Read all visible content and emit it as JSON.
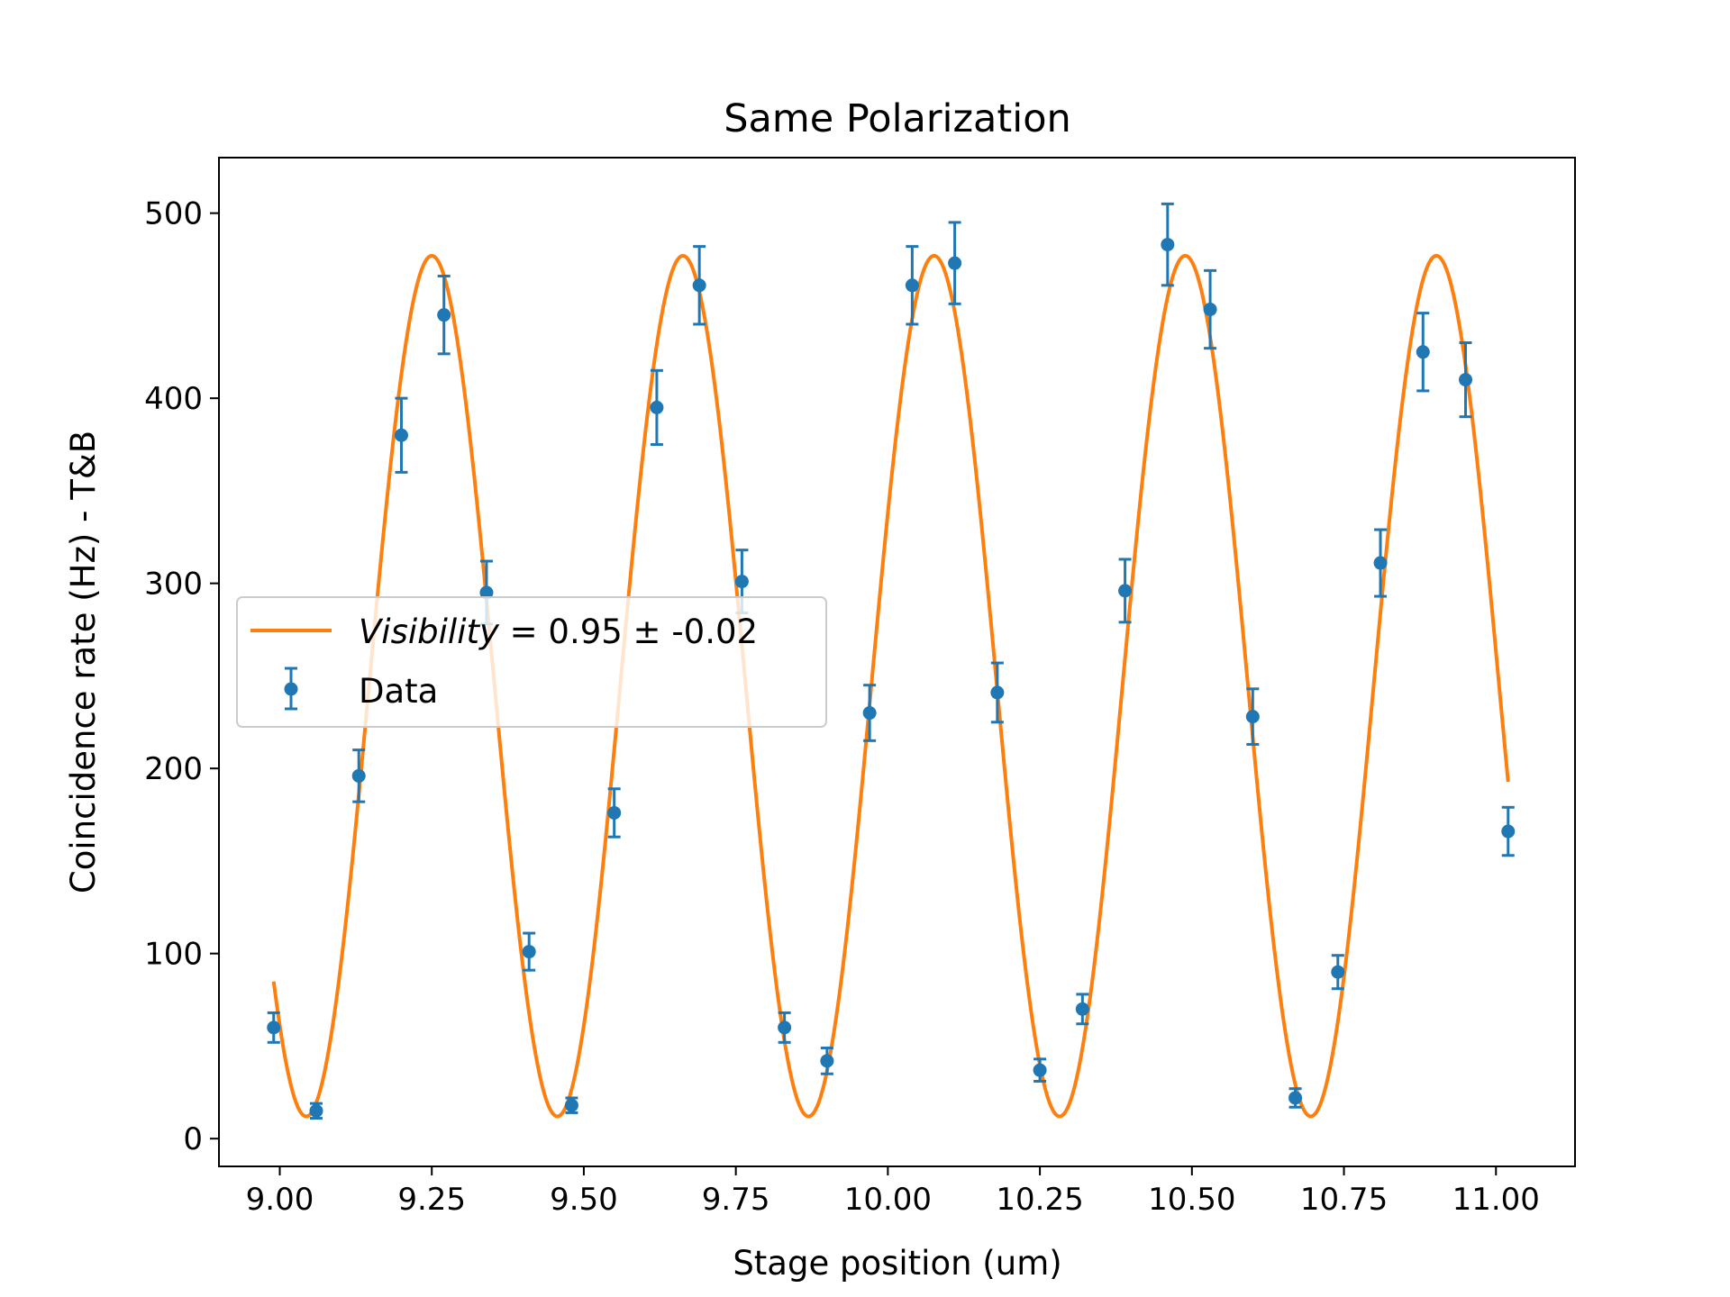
{
  "chart_data": {
    "type": "scatter",
    "title": "Same Polarization",
    "xlabel": "Stage position (um)",
    "ylabel": "Coincidence rate (Hz) - T&B",
    "xlim": [
      8.9,
      11.13
    ],
    "ylim": [
      -15,
      530
    ],
    "xticks": [
      {
        "value": 9.0,
        "label": "9.00"
      },
      {
        "value": 9.25,
        "label": "9.25"
      },
      {
        "value": 9.5,
        "label": "9.50"
      },
      {
        "value": 9.75,
        "label": "9.75"
      },
      {
        "value": 10.0,
        "label": "10.00"
      },
      {
        "value": 10.25,
        "label": "10.25"
      },
      {
        "value": 10.5,
        "label": "10.50"
      },
      {
        "value": 10.75,
        "label": "10.75"
      },
      {
        "value": 11.0,
        "label": "11.00"
      }
    ],
    "yticks": [
      {
        "value": 0,
        "label": "0"
      },
      {
        "value": 100,
        "label": "100"
      },
      {
        "value": 200,
        "label": "200"
      },
      {
        "value": 300,
        "label": "300"
      },
      {
        "value": 400,
        "label": "400"
      },
      {
        "value": 500,
        "label": "500"
      }
    ],
    "grid": false,
    "legend": {
      "placement": "center-left",
      "entries": [
        {
          "series": "fit",
          "prefix": "Visibility",
          "suffix": " = 0.95 ± -0.02"
        },
        {
          "series": "data",
          "label": "Data"
        }
      ]
    },
    "series": [
      {
        "name": "Data",
        "kind": "errorbar",
        "color": "#1f77b4",
        "points": [
          {
            "x": 8.99,
            "y": 60,
            "err": 8
          },
          {
            "x": 9.06,
            "y": 15,
            "err": 4
          },
          {
            "x": 9.13,
            "y": 196,
            "err": 14
          },
          {
            "x": 9.2,
            "y": 380,
            "err": 20
          },
          {
            "x": 9.27,
            "y": 445,
            "err": 21
          },
          {
            "x": 9.34,
            "y": 295,
            "err": 17
          },
          {
            "x": 9.41,
            "y": 101,
            "err": 10
          },
          {
            "x": 9.48,
            "y": 18,
            "err": 4
          },
          {
            "x": 9.55,
            "y": 176,
            "err": 13
          },
          {
            "x": 9.62,
            "y": 395,
            "err": 20
          },
          {
            "x": 9.69,
            "y": 461,
            "err": 21
          },
          {
            "x": 9.76,
            "y": 301,
            "err": 17
          },
          {
            "x": 9.83,
            "y": 60,
            "err": 8
          },
          {
            "x": 9.9,
            "y": 42,
            "err": 7
          },
          {
            "x": 9.97,
            "y": 230,
            "err": 15
          },
          {
            "x": 10.04,
            "y": 461,
            "err": 21
          },
          {
            "x": 10.11,
            "y": 473,
            "err": 22
          },
          {
            "x": 10.18,
            "y": 241,
            "err": 16
          },
          {
            "x": 10.25,
            "y": 37,
            "err": 6
          },
          {
            "x": 10.32,
            "y": 70,
            "err": 8
          },
          {
            "x": 10.39,
            "y": 296,
            "err": 17
          },
          {
            "x": 10.46,
            "y": 483,
            "err": 22
          },
          {
            "x": 10.53,
            "y": 448,
            "err": 21
          },
          {
            "x": 10.6,
            "y": 228,
            "err": 15
          },
          {
            "x": 10.67,
            "y": 22,
            "err": 5
          },
          {
            "x": 10.74,
            "y": 90,
            "err": 9
          },
          {
            "x": 10.81,
            "y": 311,
            "err": 18
          },
          {
            "x": 10.88,
            "y": 425,
            "err": 21
          },
          {
            "x": 10.95,
            "y": 410,
            "err": 20
          },
          {
            "x": 11.02,
            "y": 166,
            "err": 13
          }
        ]
      },
      {
        "name": "Visibility = 0.95 ± -0.02",
        "kind": "line",
        "color": "#ff7f0e",
        "model": "sine",
        "offset": 244.5,
        "amplitude": 232.5,
        "period": 0.413,
        "peak_x": 9.25,
        "x_range": [
          8.99,
          11.02
        ]
      }
    ]
  }
}
